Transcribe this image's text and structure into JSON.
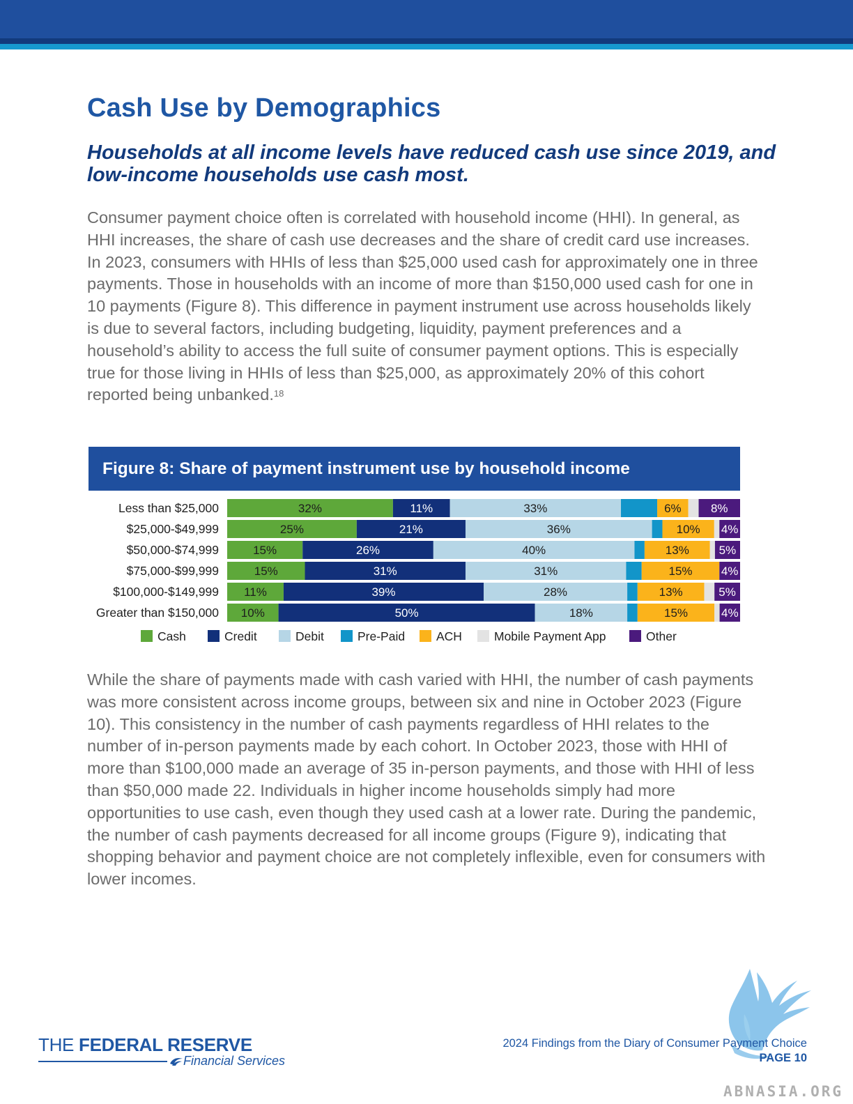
{
  "colors": {
    "cash": "#5ea83a",
    "credit": "#12307a",
    "debit": "#b6d6e6",
    "prepaid": "#1295c9",
    "ach": "#fbb31b",
    "mobile": "#e3e3e3",
    "other": "#4b1a7d",
    "brand": "#1f4f9e"
  },
  "page": {
    "title": "Cash Use by Demographics",
    "subtitle": "Households at all income levels have reduced cash use since 2019, and low-income households use cash most.",
    "para1": "Consumer payment choice often is correlated with household income (HHI). In general, as HHI increases, the share of cash use decreases and the share of credit card use increases. In 2023, consumers with HHIs of less than $25,000 used cash for approximately one in three payments. Those in households with an income of more than $150,000 used cash for one in 10 payments (Figure 8). This difference in payment instrument use across households likely is due to several factors, including budgeting, liquidity, payment preferences and a household’s ability to access the full suite of consumer payment options. This is especially true for those living in HHIs of less than $25,000, as approximately 20% of this cohort reported being unbanked.",
    "para1_footnote": "18",
    "para2": "While the share of payments made with cash varied with HHI, the number of cash payments was more consistent across income groups, between six and nine in October 2023 (Figure 10). This consistency in the number of cash payments regardless of HHI relates to the number of in-person payments made by each cohort. In October 2023, those with HHI of more than $100,000 made an average of 35 in-person payments, and those with HHI of less than $50,000 made 22. Individuals in higher income households simply had more opportunities to use cash, even though they used cash at a lower rate. During the pandemic, the number of cash payments decreased for all income groups (Figure 9), indicating that shopping behavior and payment choice are not completely inflexible, even for consumers with lower incomes."
  },
  "figure": {
    "title": "Figure 8: Share of payment instrument use by household income"
  },
  "chart_data": {
    "type": "bar",
    "orientation": "horizontal-stacked",
    "title": "Figure 8: Share of payment instrument use by household income",
    "categories": [
      "Less than $25,000",
      "$25,000-$49,999",
      "$50,000-$74,999",
      "$75,000-$99,999",
      "$100,000-$149,999",
      "Greater than $150,000"
    ],
    "xlim": [
      0,
      100
    ],
    "legend_position": "bottom",
    "grid": false,
    "series": [
      {
        "name": "Cash",
        "key": "cash",
        "values": [
          32,
          25,
          15,
          15,
          11,
          10
        ],
        "labels": [
          "32%",
          "25%",
          "15%",
          "15%",
          "11%",
          "10%"
        ]
      },
      {
        "name": "Credit",
        "key": "credit",
        "values": [
          11,
          21,
          26,
          31,
          39,
          50
        ],
        "labels": [
          "11%",
          "21%",
          "26%",
          "31%",
          "39%",
          "50%"
        ]
      },
      {
        "name": "Debit",
        "key": "debit",
        "values": [
          33,
          36,
          40,
          31,
          28,
          18
        ],
        "labels": [
          "33%",
          "36%",
          "40%",
          "31%",
          "28%",
          "18%"
        ]
      },
      {
        "name": "Pre-Paid",
        "key": "prepaid",
        "values": [
          7,
          2,
          2,
          3,
          2,
          2
        ],
        "labels": [
          "",
          "",
          "",
          "",
          "",
          ""
        ]
      },
      {
        "name": "ACH",
        "key": "ach",
        "values": [
          6,
          10,
          13,
          15,
          13,
          15
        ],
        "labels": [
          "6%",
          "10%",
          "13%",
          "15%",
          "13%",
          "15%"
        ]
      },
      {
        "name": "Mobile Payment App",
        "key": "mobile",
        "values": [
          2,
          1,
          1,
          0,
          2,
          1
        ],
        "labels": [
          "",
          "",
          "",
          "",
          "",
          ""
        ]
      },
      {
        "name": "Other",
        "key": "other",
        "values": [
          8,
          4,
          5,
          4,
          5,
          4
        ],
        "labels": [
          "8%",
          "4%",
          "5%",
          "4%",
          "5%",
          "4%"
        ]
      }
    ]
  },
  "footer": {
    "logo_the": "THE",
    "logo_name": "FEDERAL RESERVE",
    "logo_sub": "Financial Services",
    "report": "2024 Findings from the Diary of Consumer Payment Choice",
    "page": "PAGE 10"
  },
  "watermark": {
    "text": "ABNASIA.ORG"
  }
}
